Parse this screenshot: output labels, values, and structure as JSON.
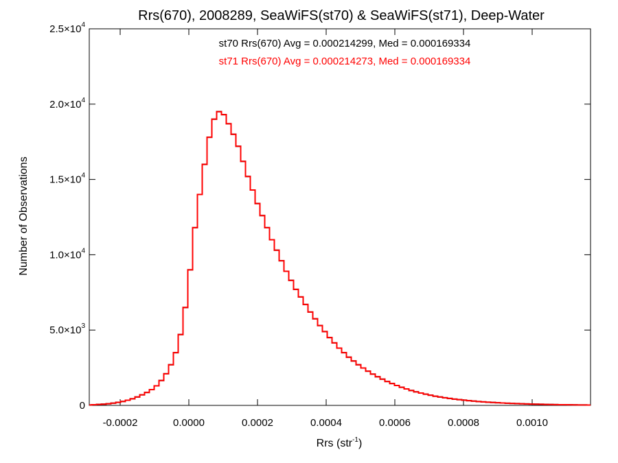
{
  "chart_data": {
    "type": "line",
    "title": "Rrs(670), 2008289, SeaWiFS(st70) & SeaWiFS(st71), Deep-Water",
    "xlabel": {
      "base": "Rrs (str",
      "sup": "-1",
      "close": ")"
    },
    "ylabel": "Number of Observations",
    "xlim": [
      -0.00029,
      0.00117
    ],
    "ylim": [
      0,
      25000
    ],
    "grid": false,
    "x_ticks": [
      {
        "value": -0.0002,
        "label": "-0.0002"
      },
      {
        "value": 0.0,
        "label": "0.0000"
      },
      {
        "value": 0.0002,
        "label": "0.0002"
      },
      {
        "value": 0.0004,
        "label": "0.0004"
      },
      {
        "value": 0.0006,
        "label": "0.0006"
      },
      {
        "value": 0.0008,
        "label": "0.0008"
      },
      {
        "value": 0.001,
        "label": "0.0010"
      }
    ],
    "y_ticks": [
      {
        "value": 0,
        "label": "0",
        "mantissa": "0",
        "exp": ""
      },
      {
        "value": 5000,
        "label": "5.0×10³",
        "mantissa": "5.0×10",
        "exp": "3"
      },
      {
        "value": 10000,
        "label": "1.0×10⁴",
        "mantissa": "1.0×10",
        "exp": "4"
      },
      {
        "value": 15000,
        "label": "1.5×10⁴",
        "mantissa": "1.5×10",
        "exp": "4"
      },
      {
        "value": 20000,
        "label": "2.0×10⁴",
        "mantissa": "2.0×10",
        "exp": "4"
      },
      {
        "value": 25000,
        "label": "2.5×10⁴",
        "mantissa": "2.5×10",
        "exp": "4"
      }
    ],
    "annotations": [
      {
        "text": "st70 Rrs(670) Avg = 0.000214299, Med = 0.000169334",
        "color": "#000000"
      },
      {
        "text": "st71 Rrs(670) Avg = 0.000214273, Med = 0.000169334",
        "color": "#ff0000"
      }
    ],
    "series": [
      {
        "name": "st70",
        "color": "#000000",
        "step": "mid",
        "x": [
          -0.00029,
          -0.000276,
          -0.000262,
          -0.000248,
          -0.000234,
          -0.00022,
          -0.000206,
          -0.000192,
          -0.000178,
          -0.000164,
          -0.00015,
          -0.000136,
          -0.000122,
          -0.000108,
          -9.4e-05,
          -8e-05,
          -6.6e-05,
          -5.2e-05,
          -3.8e-05,
          -2.4e-05,
          -1e-05,
          4e-06,
          1.8e-05,
          3.2e-05,
          4.6e-05,
          6e-05,
          7.4e-05,
          8.8e-05,
          0.000102,
          0.000116,
          0.00013,
          0.000144,
          0.000158,
          0.000172,
          0.000186,
          0.0002,
          0.000214,
          0.000228,
          0.000242,
          0.000256,
          0.00027,
          0.000284,
          0.000298,
          0.000312,
          0.000326,
          0.00034,
          0.000354,
          0.000368,
          0.000382,
          0.000396,
          0.00041,
          0.000424,
          0.000438,
          0.000452,
          0.000466,
          0.00048,
          0.000494,
          0.000508,
          0.000522,
          0.000536,
          0.00055,
          0.000564,
          0.000578,
          0.000592,
          0.000606,
          0.00062,
          0.000634,
          0.000648,
          0.000662,
          0.000676,
          0.00069,
          0.000704,
          0.000718,
          0.000732,
          0.000746,
          0.00076,
          0.000774,
          0.000788,
          0.000802,
          0.000816,
          0.00083,
          0.000844,
          0.000858,
          0.000872,
          0.000886,
          0.0009,
          0.000914,
          0.000928,
          0.000942,
          0.000956,
          0.00097,
          0.000984,
          0.000998,
          0.001012,
          0.001026,
          0.00104,
          0.001054,
          0.001068,
          0.001082,
          0.001096,
          0.00111,
          0.001124,
          0.001138,
          0.001152,
          0.001166
        ],
        "y": [
          30,
          45,
          60,
          80,
          110,
          150,
          200,
          260,
          340,
          440,
          560,
          700,
          860,
          1050,
          1300,
          1650,
          2100,
          2700,
          3500,
          4700,
          6500,
          9000,
          11800,
          14000,
          16000,
          17800,
          19000,
          19500,
          19300,
          18700,
          18000,
          17200,
          16200,
          15200,
          14300,
          13400,
          12600,
          11800,
          11000,
          10300,
          9600,
          8900,
          8300,
          7700,
          7200,
          6700,
          6200,
          5750,
          5300,
          4900,
          4500,
          4150,
          3800,
          3500,
          3200,
          2950,
          2700,
          2480,
          2270,
          2080,
          1900,
          1740,
          1590,
          1450,
          1320,
          1200,
          1090,
          990,
          900,
          820,
          745,
          675,
          610,
          555,
          505,
          460,
          418,
          380,
          345,
          313,
          284,
          258,
          234,
          212,
          192,
          174,
          158,
          143,
          130,
          118,
          107,
          97,
          88,
          80,
          72,
          65,
          59,
          53,
          48,
          43,
          39,
          35,
          31,
          28,
          25
        ]
      },
      {
        "name": "st71",
        "color": "#ff0000",
        "step": "mid",
        "x": [
          -0.00029,
          -0.000276,
          -0.000262,
          -0.000248,
          -0.000234,
          -0.00022,
          -0.000206,
          -0.000192,
          -0.000178,
          -0.000164,
          -0.00015,
          -0.000136,
          -0.000122,
          -0.000108,
          -9.4e-05,
          -8e-05,
          -6.6e-05,
          -5.2e-05,
          -3.8e-05,
          -2.4e-05,
          -1e-05,
          4e-06,
          1.8e-05,
          3.2e-05,
          4.6e-05,
          6e-05,
          7.4e-05,
          8.8e-05,
          0.000102,
          0.000116,
          0.00013,
          0.000144,
          0.000158,
          0.000172,
          0.000186,
          0.0002,
          0.000214,
          0.000228,
          0.000242,
          0.000256,
          0.00027,
          0.000284,
          0.000298,
          0.000312,
          0.000326,
          0.00034,
          0.000354,
          0.000368,
          0.000382,
          0.000396,
          0.00041,
          0.000424,
          0.000438,
          0.000452,
          0.000466,
          0.00048,
          0.000494,
          0.000508,
          0.000522,
          0.000536,
          0.00055,
          0.000564,
          0.000578,
          0.000592,
          0.000606,
          0.00062,
          0.000634,
          0.000648,
          0.000662,
          0.000676,
          0.00069,
          0.000704,
          0.000718,
          0.000732,
          0.000746,
          0.00076,
          0.000774,
          0.000788,
          0.000802,
          0.000816,
          0.00083,
          0.000844,
          0.000858,
          0.000872,
          0.000886,
          0.0009,
          0.000914,
          0.000928,
          0.000942,
          0.000956,
          0.00097,
          0.000984,
          0.000998,
          0.001012,
          0.001026,
          0.00104,
          0.001054,
          0.001068,
          0.001082,
          0.001096,
          0.00111,
          0.001124,
          0.001138,
          0.001152,
          0.001166
        ],
        "y": [
          30,
          45,
          60,
          80,
          110,
          150,
          200,
          260,
          340,
          440,
          560,
          700,
          860,
          1050,
          1300,
          1650,
          2100,
          2700,
          3500,
          4700,
          6500,
          9000,
          11800,
          14000,
          16000,
          17800,
          19000,
          19500,
          19300,
          18700,
          18000,
          17200,
          16200,
          15200,
          14300,
          13400,
          12600,
          11800,
          11000,
          10300,
          9600,
          8900,
          8300,
          7700,
          7200,
          6700,
          6200,
          5750,
          5300,
          4900,
          4500,
          4150,
          3800,
          3500,
          3200,
          2950,
          2700,
          2480,
          2270,
          2080,
          1900,
          1740,
          1590,
          1450,
          1320,
          1200,
          1090,
          990,
          900,
          820,
          745,
          675,
          610,
          555,
          505,
          460,
          418,
          380,
          345,
          313,
          284,
          258,
          234,
          212,
          192,
          174,
          158,
          143,
          130,
          118,
          107,
          97,
          88,
          80,
          72,
          65,
          59,
          53,
          48,
          43,
          39,
          35,
          31,
          28,
          25
        ]
      }
    ]
  }
}
